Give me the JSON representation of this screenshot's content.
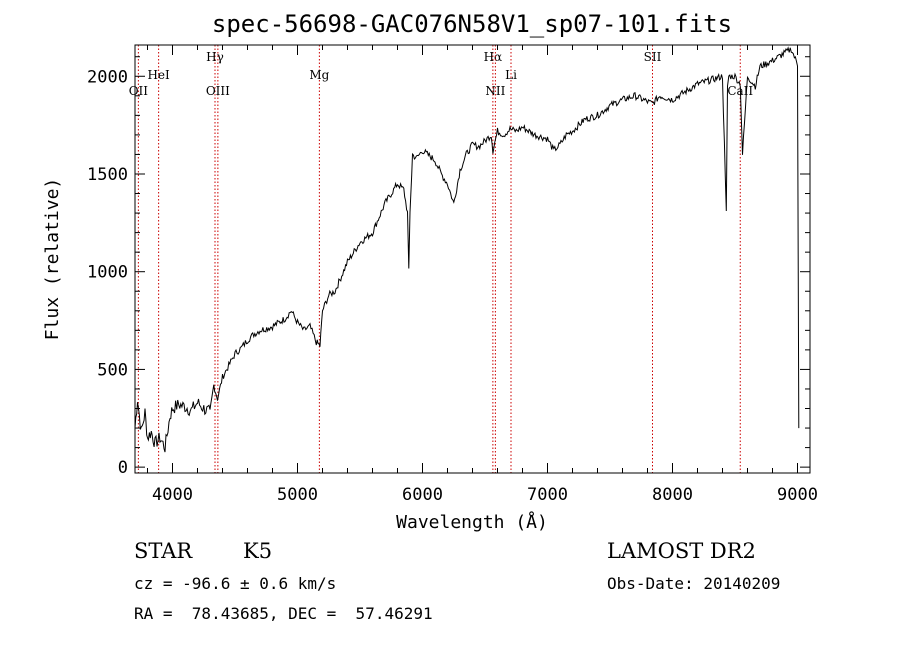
{
  "chart_data": {
    "type": "line",
    "title": "spec-56698-GAC076N58V1_sp07-101.fits",
    "xlabel": "Wavelength (Å)",
    "ylabel": "Flux (relative)",
    "xlim": [
      3700,
      9100
    ],
    "ylim": [
      -30,
      2160
    ],
    "xticks": [
      4000,
      5000,
      6000,
      7000,
      8000,
      9000
    ],
    "yticks": [
      0,
      500,
      1000,
      1500,
      2000
    ],
    "grid": false,
    "series_color": "#000000",
    "line_marker_color": "#cc0000",
    "spectral_lines": [
      {
        "label": "OII",
        "wavelength": 3727,
        "row": "lower"
      },
      {
        "label": "HeI",
        "wavelength": 3889,
        "row": "upper"
      },
      {
        "label": "Hγ",
        "wavelength": 4340,
        "row": "top"
      },
      {
        "label": "OIII",
        "wavelength": 4363,
        "row": "lower"
      },
      {
        "label": "Mg",
        "wavelength": 5175,
        "row": "upper"
      },
      {
        "label": "Hα",
        "wavelength": 6563,
        "row": "top"
      },
      {
        "label": "NII",
        "wavelength": 6583,
        "row": "lower"
      },
      {
        "label": "Li",
        "wavelength": 6708,
        "row": "upper"
      },
      {
        "label": "SII",
        "wavelength": 7840,
        "row": "top"
      },
      {
        "label": "CaII",
        "wavelength": 8542,
        "row": "lower"
      }
    ],
    "spectrum": {
      "x": [
        3700,
        3720,
        3750,
        3780,
        3800,
        3830,
        3860,
        3900,
        3940,
        3980,
        4000,
        4050,
        4100,
        4150,
        4200,
        4250,
        4300,
        4330,
        4360,
        4400,
        4450,
        4500,
        4550,
        4600,
        4650,
        4700,
        4800,
        4900,
        4950,
        5000,
        5050,
        5100,
        5150,
        5180,
        5200,
        5250,
        5300,
        5400,
        5500,
        5600,
        5700,
        5800,
        5850,
        5880,
        5890,
        5900,
        5920,
        5950,
        6000,
        6100,
        6150,
        6200,
        6250,
        6280,
        6300,
        6350,
        6400,
        6450,
        6500,
        6550,
        6563,
        6600,
        6650,
        6700,
        6750,
        6800,
        6900,
        7000,
        7050,
        7100,
        7150,
        7200,
        7300,
        7400,
        7500,
        7600,
        7700,
        7800,
        7840,
        7900,
        8000,
        8100,
        8200,
        8300,
        8400,
        8430,
        8440,
        8450,
        8500,
        8542,
        8560,
        8600,
        8662,
        8700,
        8800,
        8900,
        8950,
        9000,
        9010
      ],
      "y": [
        200,
        350,
        180,
        280,
        150,
        180,
        120,
        150,
        100,
        260,
        300,
        320,
        310,
        290,
        330,
        300,
        280,
        420,
        350,
        460,
        520,
        580,
        610,
        650,
        680,
        700,
        720,
        760,
        800,
        740,
        700,
        720,
        640,
        620,
        800,
        880,
        900,
        1050,
        1150,
        1200,
        1350,
        1450,
        1420,
        1300,
        1000,
        1300,
        1600,
        1580,
        1620,
        1570,
        1500,
        1450,
        1350,
        1450,
        1520,
        1600,
        1650,
        1640,
        1670,
        1700,
        1620,
        1720,
        1700,
        1730,
        1720,
        1740,
        1700,
        1680,
        1620,
        1650,
        1700,
        1720,
        1780,
        1800,
        1850,
        1880,
        1900,
        1870,
        1860,
        1900,
        1880,
        1920,
        1960,
        1980,
        2000,
        1300,
        1950,
        2000,
        2000,
        1960,
        1600,
        2000,
        1950,
        2050,
        2080,
        2120,
        2140,
        2060,
        200
      ]
    }
  },
  "info": {
    "object_type": "STAR",
    "subclass": "K5",
    "survey": "LAMOST DR2",
    "cz": "cz = -96.6 ± 0.6 km/s",
    "obs_date": "Obs-Date: 20140209",
    "coords": "RA =  78.43685, DEC =  57.46291"
  }
}
